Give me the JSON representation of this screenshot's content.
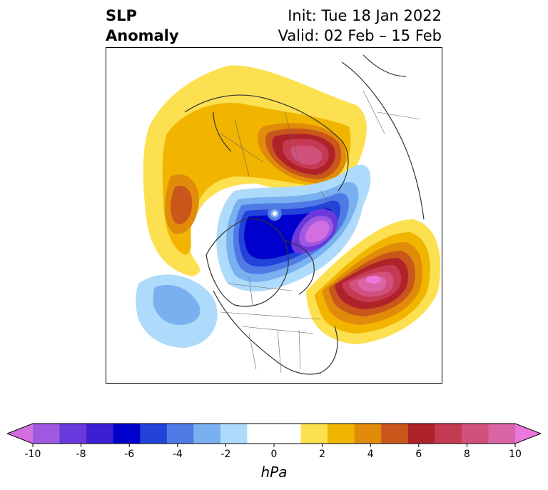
{
  "header": {
    "title_line1": "SLP",
    "title_line2": "Anomaly",
    "init": "Init: Tue 18 Jan 2022",
    "valid": "Valid: 02 Feb – 15 Feb"
  },
  "colorbar": {
    "units": "hPa",
    "colors": [
      "#d36ee0",
      "#9f59e0",
      "#6a39dd",
      "#3b1fd4",
      "#0000cc",
      "#2242d9",
      "#4f7ae6",
      "#79b0ef",
      "#aedbfb",
      "#ffffff",
      "#ffffff",
      "#fde04f",
      "#f1b500",
      "#e08c0a",
      "#c9561a",
      "#b0222a",
      "#c43a52",
      "#d1507c",
      "#d964a6",
      "#eb78dc"
    ],
    "tick_labels": [
      "-10",
      "-8",
      "-6",
      "-4",
      "-2",
      "0",
      "2",
      "4",
      "6",
      "8",
      "10"
    ],
    "extend": "both"
  },
  "map": {
    "projection": "polar stereographic (north)",
    "anomalies": [
      {
        "name": "positive-center-north-eurasia",
        "sign": "+"
      },
      {
        "name": "positive-center-north-atlantic",
        "sign": "+"
      },
      {
        "name": "positive-center-north-pacific",
        "sign": "+"
      },
      {
        "name": "negative-center-arctic",
        "sign": "-"
      },
      {
        "name": "negative-center-east-pacific",
        "sign": "-"
      }
    ]
  }
}
